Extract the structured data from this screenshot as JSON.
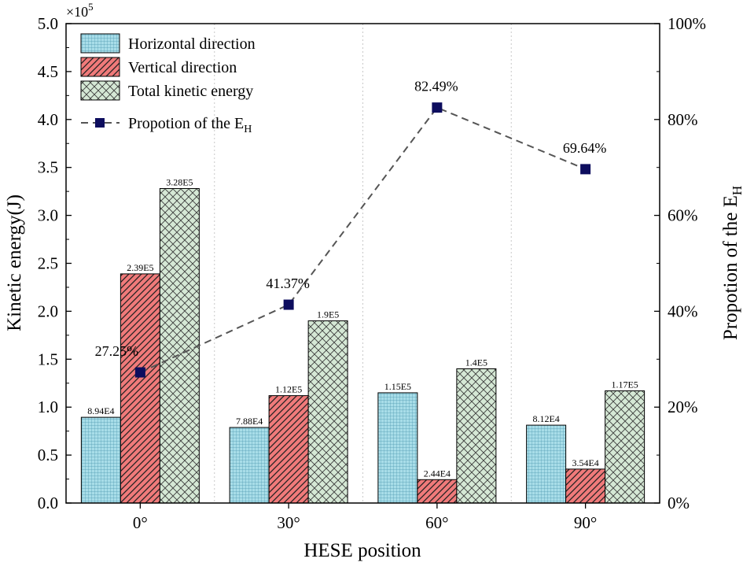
{
  "chart_data": {
    "type": "bar",
    "categories": [
      "0°",
      "30°",
      "60°",
      "90°"
    ],
    "xlabel": "HESE position",
    "ylabel": "Kinetic energy(J)",
    "y_multiplier": "×10",
    "y_multiplier_exp": "5",
    "ylim": [
      0,
      5.0
    ],
    "yticks": [
      "0.0",
      "0.5",
      "1.0",
      "1.5",
      "2.0",
      "2.5",
      "3.0",
      "3.5",
      "4.0",
      "4.5",
      "5.0"
    ],
    "y2label": "Propotion of the E",
    "y2label_sub": "H",
    "y2lim": [
      0,
      100
    ],
    "y2ticks": [
      "0%",
      "20%",
      "40%",
      "60%",
      "80%",
      "100%"
    ],
    "grid": "vertical dotted gridlines between categories",
    "series": [
      {
        "name": "Horizontal direction",
        "pattern": "grid",
        "color": "#a8dde8",
        "values": [
          0.894,
          0.788,
          1.15,
          0.812
        ],
        "labels": [
          "8.94E4",
          "7.88E4",
          "1.15E5",
          "8.12E4"
        ]
      },
      {
        "name": "Vertical direction",
        "pattern": "diagonal",
        "color": "#f07a7a",
        "values": [
          2.39,
          1.12,
          0.244,
          0.354
        ],
        "labels": [
          "2.39E5",
          "1.12E5",
          "2.44E4",
          "3.54E4"
        ]
      },
      {
        "name": "Total kinetic energy",
        "pattern": "crosshatch",
        "color": "#d5e8d5",
        "values": [
          3.28,
          1.9,
          1.4,
          1.17
        ],
        "labels": [
          "3.28E5",
          "1.9E5",
          "1.4E5",
          "1.17E5"
        ]
      }
    ],
    "line_series": {
      "name": "Propotion of the E",
      "name_sub": "H",
      "axis": "right",
      "marker": "square",
      "color": "#0d0d5e",
      "line_color": "#555555",
      "values": [
        27.25,
        41.37,
        82.49,
        69.64
      ],
      "labels": [
        "27.25%",
        "41.37%",
        "82.49%",
        "69.64%"
      ]
    },
    "legend_position": "top-left"
  }
}
